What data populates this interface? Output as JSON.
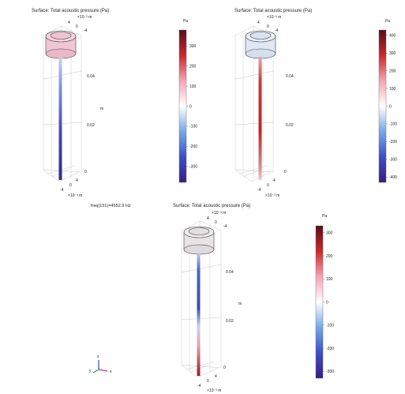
{
  "plots": [
    {
      "title": "Surface: Total acoustic pressure (Pa)",
      "unit": "Pa",
      "exponent": "×10⁻³ m",
      "z_ticks": [
        "0.04",
        "0.02",
        "0"
      ],
      "z_label": "m",
      "top_ticks": [
        "4",
        "0",
        "-4"
      ],
      "bottom_ticks": [
        "4",
        "0",
        "-4"
      ],
      "bottom_exponent": "×10⁻³ m",
      "colorbar_ticks": [
        "300",
        "200",
        "100",
        "0",
        "-100",
        "-200",
        "-300"
      ],
      "colorbar_range": [
        -380,
        380
      ],
      "cap_color": "#f0c6d4",
      "rod_colors": [
        "#8a9fd8",
        "#3d2f9a"
      ]
    },
    {
      "title": "Surface: Total acoustic pressure (Pa)",
      "unit": "Pa",
      "exponent": "×10⁻³ m",
      "z_ticks": [
        "0.04",
        "0.02",
        "0"
      ],
      "z_label": "m",
      "top_ticks": [
        "4",
        "0",
        "-4"
      ],
      "bottom_ticks": [
        "4",
        "0",
        "-4"
      ],
      "bottom_exponent": "×10⁻³ m",
      "colorbar_ticks": [
        "400",
        "300",
        "200",
        "100",
        "0",
        "-100",
        "-200",
        "-300",
        "-400"
      ],
      "colorbar_range": [
        -430,
        430
      ],
      "cap_color": "#dfe7f2",
      "rod_colors": [
        "#c43a3a",
        "#d98a96"
      ]
    },
    {
      "title": "Surface: Total acoustic pressure (Pa)",
      "unit": "Pa",
      "exponent": "×10⁻³ m",
      "z_ticks": [
        "0.04",
        "0.02",
        "0"
      ],
      "z_label": "m",
      "top_ticks": [
        "4",
        "0",
        "-4"
      ],
      "bottom_ticks": [
        "4",
        "0",
        "-4"
      ],
      "bottom_exponent": "×10⁻³ m",
      "colorbar_ticks": [
        "300",
        "200",
        "100",
        "0",
        "-100",
        "-200",
        "-300"
      ],
      "colorbar_range": [
        -330,
        330
      ],
      "cap_color": "#e8e4e6",
      "rod_colors": [
        "#3a4cb0",
        "#9a1c22"
      ]
    }
  ],
  "freq_label": "freq(151)=4552.9 Hz",
  "axes_triad": {
    "z": "z",
    "y": "y",
    "x": "x"
  },
  "colors": {
    "colorbar_stops": [
      "#3a1d80",
      "#3d4fc9",
      "#76a7e8",
      "#ffffff",
      "#f4a4b4",
      "#c92a2a",
      "#5c0d1b"
    ]
  }
}
